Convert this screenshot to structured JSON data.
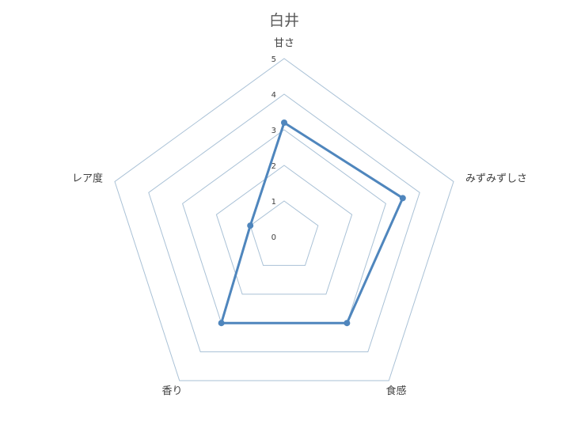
{
  "chart_data": {
    "type": "radar",
    "title": "白井",
    "categories": [
      "甘さ",
      "みずみずしさ",
      "食感",
      "香り",
      "レア度"
    ],
    "series": [
      {
        "values": [
          3.2,
          3.5,
          3.0,
          3.0,
          1.0
        ],
        "color": "#4f86bd"
      }
    ],
    "rlim": [
      0,
      5
    ],
    "ticks": [
      "0",
      "1",
      "2",
      "3",
      "4",
      "5"
    ],
    "grid_color": "#a9c1d6",
    "grid": true,
    "legend": "none"
  }
}
